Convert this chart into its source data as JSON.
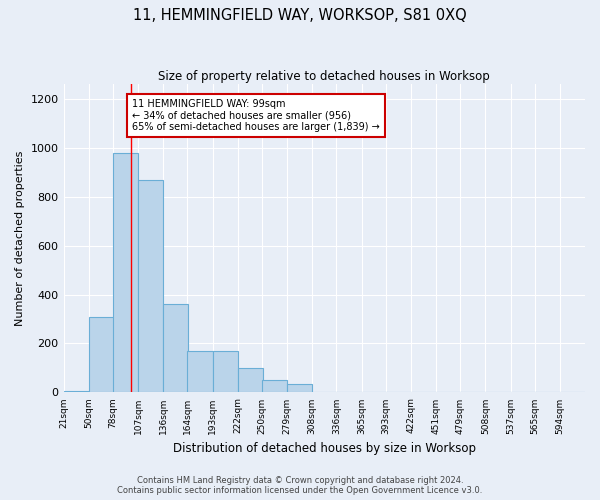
{
  "title": "11, HEMMINGFIELD WAY, WORKSOP, S81 0XQ",
  "subtitle": "Size of property relative to detached houses in Worksop",
  "xlabel": "Distribution of detached houses by size in Worksop",
  "ylabel": "Number of detached properties",
  "bar_values": [
    5,
    310,
    980,
    870,
    360,
    170,
    170,
    100,
    50,
    35,
    0,
    0,
    0,
    0,
    0,
    0,
    0,
    0,
    0,
    0,
    0
  ],
  "bin_edges": [
    21,
    50,
    78,
    107,
    136,
    164,
    193,
    222,
    250,
    279,
    308,
    336,
    365,
    393,
    422,
    451,
    479,
    508,
    537,
    565,
    594
  ],
  "tick_labels": [
    "21sqm",
    "50sqm",
    "78sqm",
    "107sqm",
    "136sqm",
    "164sqm",
    "193sqm",
    "222sqm",
    "250sqm",
    "279sqm",
    "308sqm",
    "336sqm",
    "365sqm",
    "393sqm",
    "422sqm",
    "451sqm",
    "479sqm",
    "508sqm",
    "537sqm",
    "565sqm",
    "594sqm"
  ],
  "ylim": [
    0,
    1260
  ],
  "yticks": [
    0,
    200,
    400,
    600,
    800,
    1000,
    1200
  ],
  "bar_color": "#bad4ea",
  "bar_edge_color": "#6aaed6",
  "red_line_x": 99,
  "annotation_text": "11 HEMMINGFIELD WAY: 99sqm\n← 34% of detached houses are smaller (956)\n65% of semi-detached houses are larger (1,839) →",
  "annotation_box_color": "#ffffff",
  "annotation_box_edge_color": "#cc0000",
  "footer_text": "Contains HM Land Registry data © Crown copyright and database right 2024.\nContains public sector information licensed under the Open Government Licence v3.0.",
  "bg_color": "#e8eef7",
  "grid_color": "#ffffff",
  "ax_bg_color": "#e8eef7"
}
